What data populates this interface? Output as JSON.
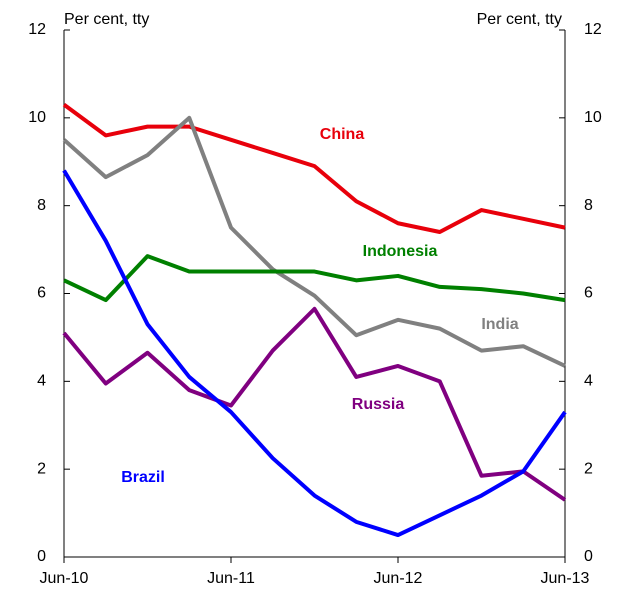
{
  "chart_data": {
    "type": "line",
    "y_label": "Per cent, tty",
    "y2_label": "Per cent, tty",
    "categories": [
      "Jun-10",
      null,
      null,
      null,
      "Jun-11",
      null,
      null,
      null,
      "Jun-12",
      null,
      null,
      null,
      "Jun-13"
    ],
    "series": [
      {
        "name": "China",
        "color": "#e8000b",
        "values": [
          10.3,
          9.6,
          9.8,
          9.8,
          9.5,
          9.2,
          8.9,
          8.1,
          7.6,
          7.4,
          7.9,
          7.7,
          7.5
        ]
      },
      {
        "name": "India",
        "color": "#808080",
        "values": [
          9.5,
          8.65,
          9.15,
          10.0,
          7.5,
          6.55,
          5.95,
          5.05,
          5.4,
          5.2,
          4.7,
          4.8,
          4.35
        ]
      },
      {
        "name": "Indonesia",
        "color": "#008000",
        "values": [
          6.3,
          5.85,
          6.85,
          6.5,
          6.5,
          6.5,
          6.5,
          6.3,
          6.4,
          6.15,
          6.1,
          6.0,
          5.85
        ]
      },
      {
        "name": "Russia",
        "color": "#800080",
        "values": [
          5.1,
          3.95,
          4.65,
          3.8,
          3.45,
          4.7,
          5.65,
          4.1,
          4.35,
          4.0,
          1.85,
          1.95,
          1.3
        ]
      },
      {
        "name": "Brazil",
        "color": "#0000ff",
        "values": [
          8.8,
          7.2,
          5.3,
          4.1,
          3.3,
          2.25,
          1.4,
          0.8,
          0.5,
          0.95,
          1.4,
          1.95,
          3.3
        ]
      }
    ],
    "ylim": [
      0,
      12
    ],
    "yticks": [
      0,
      2,
      4,
      6,
      8,
      10,
      12
    ],
    "y2lim": [
      0,
      12
    ],
    "y2ticks": [
      0,
      2,
      4,
      6,
      8,
      10,
      12
    ],
    "grid": false
  }
}
